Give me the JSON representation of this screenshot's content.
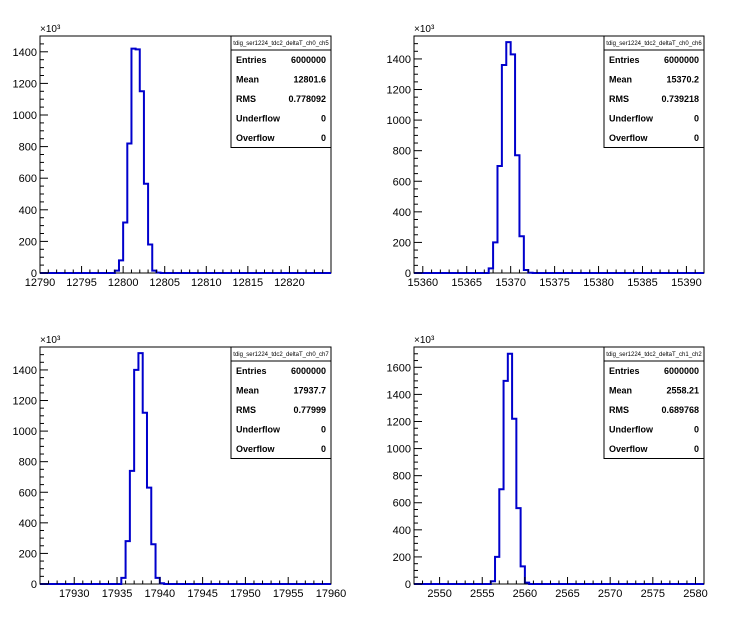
{
  "chart_data": [
    {
      "type": "bar",
      "title": "",
      "xlabel": "",
      "ylabel": "",
      "y_multiplier_label": "×10³",
      "xlim": [
        12790,
        12825
      ],
      "ylim": [
        0,
        1500
      ],
      "xticks": [
        "12790",
        "12795",
        "12800",
        "12805",
        "12810",
        "12815",
        "12820"
      ],
      "yticks": [
        "0",
        "200",
        "400",
        "600",
        "800",
        "1000",
        "1200",
        "1400"
      ],
      "bin_width": 0.5,
      "bin_start": 12799.0,
      "values": [
        15,
        80,
        320,
        820,
        1420,
        1415,
        1150,
        565,
        180,
        15,
        2
      ],
      "line_color": "#0000cc",
      "stats": {
        "title": "tdig_ser1224_tdc2_deltaT_ch0_ch5",
        "rows": [
          {
            "key": "Entries",
            "value": "6000000"
          },
          {
            "key": "Mean",
            "value": "12801.6"
          },
          {
            "key": "RMS",
            "value": "0.778092"
          },
          {
            "key": "Underflow",
            "value": "0"
          },
          {
            "key": "Overflow",
            "value": "0"
          }
        ]
      }
    },
    {
      "type": "bar",
      "title": "",
      "xlabel": "",
      "ylabel": "",
      "y_multiplier_label": "×10³",
      "xlim": [
        15359,
        15392
      ],
      "ylim": [
        0,
        1550
      ],
      "xticks": [
        "15360",
        "15365",
        "15370",
        "15375",
        "15380",
        "15385",
        "15390"
      ],
      "yticks": [
        "0",
        "200",
        "400",
        "600",
        "800",
        "1000",
        "1200",
        "1400"
      ],
      "bin_width": 0.5,
      "bin_start": 15367.5,
      "values": [
        30,
        200,
        700,
        1360,
        1510,
        1430,
        770,
        240,
        20,
        2
      ],
      "line_color": "#0000cc",
      "stats": {
        "title": "tdig_ser1224_tdc2_deltaT_ch0_ch6",
        "rows": [
          {
            "key": "Entries",
            "value": "6000000"
          },
          {
            "key": "Mean",
            "value": "15370.2"
          },
          {
            "key": "RMS",
            "value": "0.739218"
          },
          {
            "key": "Underflow",
            "value": "0"
          },
          {
            "key": "Overflow",
            "value": "0"
          }
        ]
      }
    },
    {
      "type": "bar",
      "title": "",
      "xlabel": "",
      "ylabel": "",
      "y_multiplier_label": "×10³",
      "xlim": [
        17926,
        17960
      ],
      "ylim": [
        0,
        1550
      ],
      "xticks": [
        "17930",
        "17935",
        "17940",
        "17945",
        "17950",
        "17955",
        "17960"
      ],
      "yticks": [
        "0",
        "200",
        "400",
        "600",
        "800",
        "1000",
        "1200",
        "1400"
      ],
      "bin_width": 0.5,
      "bin_start": 17935.5,
      "values": [
        40,
        280,
        740,
        1400,
        1510,
        1120,
        630,
        260,
        40,
        5
      ],
      "line_color": "#0000cc",
      "stats": {
        "title": "tdig_ser1224_tdc2_deltaT_ch0_ch7",
        "rows": [
          {
            "key": "Entries",
            "value": "6000000"
          },
          {
            "key": "Mean",
            "value": "17937.7"
          },
          {
            "key": "RMS",
            "value": "0.77999"
          },
          {
            "key": "Underflow",
            "value": "0"
          },
          {
            "key": "Overflow",
            "value": "0"
          }
        ]
      }
    },
    {
      "type": "bar",
      "title": "",
      "xlabel": "",
      "ylabel": "",
      "y_multiplier_label": "×10³",
      "xlim": [
        2547,
        2581
      ],
      "ylim": [
        0,
        1750
      ],
      "xticks": [
        "2550",
        "2555",
        "2560",
        "2565",
        "2570",
        "2575",
        "2580"
      ],
      "yticks": [
        "0",
        "200",
        "400",
        "600",
        "800",
        "1000",
        "1200",
        "1400",
        "1600"
      ],
      "bin_width": 0.5,
      "bin_start": 2556.0,
      "values": [
        20,
        200,
        700,
        1500,
        1700,
        1220,
        560,
        130,
        10
      ],
      "line_color": "#0000cc",
      "stats": {
        "title": "tdig_ser1224_tdc2_deltaT_ch1_ch2",
        "rows": [
          {
            "key": "Entries",
            "value": "6000000"
          },
          {
            "key": "Mean",
            "value": "2558.21"
          },
          {
            "key": "RMS",
            "value": "0.689768"
          },
          {
            "key": "Underflow",
            "value": "0"
          },
          {
            "key": "Overflow",
            "value": "0"
          }
        ]
      }
    }
  ]
}
